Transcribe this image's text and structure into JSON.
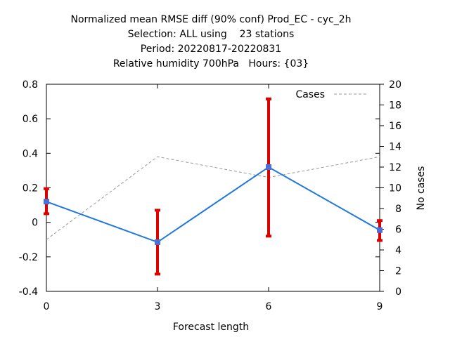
{
  "title_lines": [
    "Normalized mean RMSE diff (90% conf) Prod_EC - cyc_2h",
    "Selection: ALL using    23 stations",
    "Period: 20220817-20220831",
    "Relative humidity 700hPa   Hours: {03}"
  ],
  "chart_data": {
    "type": "line",
    "xlabel": "Forecast length",
    "ylabel": "",
    "y2label": "No cases",
    "x": [
      0,
      3,
      6,
      9
    ],
    "xlim": [
      0,
      9
    ],
    "ylim": [
      -0.4,
      0.8
    ],
    "y2lim": [
      0,
      20
    ],
    "xticks": [
      "0",
      "3",
      "6",
      "9"
    ],
    "yticks": [
      "-0.4",
      "-0.2",
      "0",
      "0.2",
      "0.4",
      "0.6",
      "0.8"
    ],
    "y2ticks": [
      "0",
      "2",
      "4",
      "6",
      "8",
      "10",
      "12",
      "14",
      "16",
      "18",
      "20"
    ],
    "legend_position": "top-right",
    "grid": false,
    "series": [
      {
        "name": "",
        "axis": "left",
        "color": "#1f77e0",
        "values": [
          0.12,
          -0.115,
          0.32,
          -0.045
        ],
        "error_low": [
          0.05,
          -0.3,
          -0.08,
          -0.105
        ],
        "error_high": [
          0.195,
          0.07,
          0.715,
          0.01
        ],
        "error_color": "#dd0000"
      },
      {
        "name": "Cases",
        "axis": "right",
        "color": "#999999",
        "dashed": true,
        "values": [
          5,
          13,
          11,
          13
        ]
      }
    ]
  }
}
